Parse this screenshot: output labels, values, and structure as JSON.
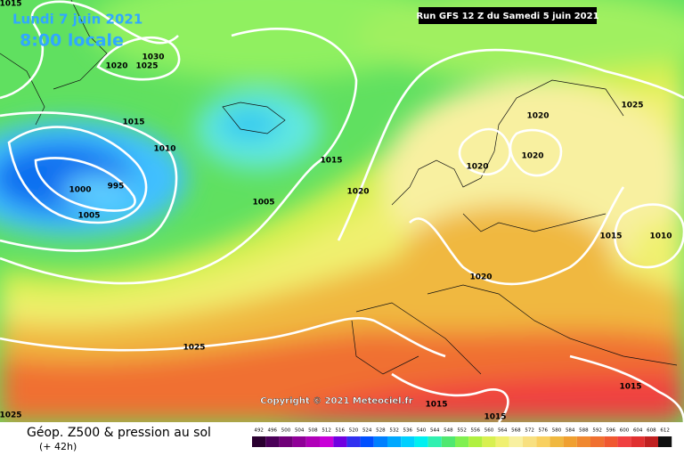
{
  "header": {
    "date": "Lundi 7 juin 2021",
    "time": "8:00 locale",
    "run": "Run GFS 12 Z du Samedi 5 juin 2021"
  },
  "copyright": "Copyright © 2021 Meteociel.fr",
  "footer": {
    "title": "Géop. Z500 & pression au sol",
    "lead": "(+ 42h)"
  },
  "isobar_labels": [
    1015,
    1030,
    1020,
    1025,
    1015,
    1010,
    1015,
    1020,
    1025,
    1000,
    995,
    1005,
    1005,
    1020,
    1020,
    1020,
    1015,
    1010,
    1020,
    1025,
    1015,
    1015,
    1015,
    1025
  ],
  "scale": {
    "labels": [
      492,
      496,
      500,
      504,
      508,
      512,
      516,
      520,
      524,
      528,
      532,
      536,
      540,
      544,
      548,
      552,
      556,
      560,
      564,
      568,
      572,
      576,
      580,
      584,
      588,
      592,
      596,
      600,
      604,
      608,
      612
    ],
    "colors": [
      "#2a0030",
      "#4a0058",
      "#700078",
      "#900098",
      "#b000b8",
      "#c800d8",
      "#7000e0",
      "#3030f0",
      "#0050ff",
      "#0080ff",
      "#00a8ff",
      "#00d0ff",
      "#00f0f0",
      "#30f0b0",
      "#50e870",
      "#80f050",
      "#b0f040",
      "#d8f050",
      "#f0f070",
      "#f8f0a0",
      "#f8e080",
      "#f8d060",
      "#f0b840",
      "#f0a030",
      "#f08830",
      "#f07030",
      "#f05830",
      "#f04040",
      "#e03030",
      "#c02020",
      "#101010"
    ]
  }
}
